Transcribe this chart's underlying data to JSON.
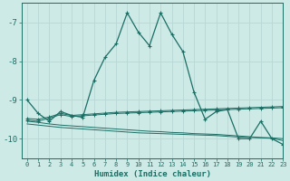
{
  "xlabel": "Humidex (Indice chaleur)",
  "background_color": "#ceeae7",
  "grid_color": "#b8d8d4",
  "line_color": "#1a6e64",
  "xlim": [
    -0.5,
    23
  ],
  "ylim": [
    -10.5,
    -6.5
  ],
  "yticks": [
    -10,
    -9,
    -8,
    -7
  ],
  "xticks": [
    0,
    1,
    2,
    3,
    4,
    5,
    6,
    7,
    8,
    9,
    10,
    11,
    12,
    13,
    14,
    15,
    16,
    17,
    18,
    19,
    20,
    21,
    22,
    23
  ],
  "main_line_x": [
    0,
    1,
    2,
    3,
    4,
    5,
    6,
    7,
    8,
    9,
    10,
    11,
    12,
    13,
    14,
    15,
    16,
    17,
    18,
    19,
    20,
    21,
    22,
    23
  ],
  "main_line_y": [
    -9.0,
    -9.35,
    -9.55,
    -9.3,
    -9.4,
    -9.45,
    -8.5,
    -7.9,
    -7.55,
    -6.75,
    -7.25,
    -7.6,
    -6.75,
    -7.3,
    -7.75,
    -8.8,
    -9.5,
    -9.3,
    -9.25,
    -10.0,
    -10.0,
    -9.55,
    -10.0,
    -10.15
  ],
  "line2_x": [
    0,
    1,
    2,
    3,
    4,
    5,
    6,
    7,
    8,
    9,
    10,
    11,
    12,
    13,
    14,
    15,
    16,
    17,
    18,
    19,
    20,
    21,
    22,
    23
  ],
  "line2_y": [
    -9.55,
    -9.58,
    -9.62,
    -9.65,
    -9.67,
    -9.69,
    -9.71,
    -9.73,
    -9.75,
    -9.77,
    -9.79,
    -9.81,
    -9.82,
    -9.84,
    -9.85,
    -9.87,
    -9.88,
    -9.89,
    -9.91,
    -9.93,
    -9.95,
    -9.97,
    -9.98,
    -10.0
  ],
  "line3_x": [
    0,
    1,
    2,
    3,
    4,
    5,
    6,
    7,
    8,
    9,
    10,
    11,
    12,
    13,
    14,
    15,
    16,
    17,
    18,
    19,
    20,
    21,
    22,
    23
  ],
  "line3_y": [
    -9.62,
    -9.65,
    -9.68,
    -9.71,
    -9.73,
    -9.75,
    -9.77,
    -9.79,
    -9.81,
    -9.83,
    -9.85,
    -9.86,
    -9.87,
    -9.88,
    -9.89,
    -9.9,
    -9.91,
    -9.92,
    -9.94,
    -9.96,
    -9.97,
    -9.98,
    -9.99,
    -10.05
  ],
  "line4_x": [
    0,
    1,
    2,
    3,
    4,
    5,
    6,
    7,
    8,
    9,
    10,
    11,
    12,
    13,
    14,
    15,
    16,
    17,
    18,
    19,
    20,
    21,
    22,
    23
  ],
  "line4_y": [
    -9.52,
    -9.55,
    -9.47,
    -9.38,
    -9.43,
    -9.41,
    -9.39,
    -9.37,
    -9.35,
    -9.34,
    -9.33,
    -9.32,
    -9.31,
    -9.3,
    -9.29,
    -9.28,
    -9.27,
    -9.26,
    -9.25,
    -9.24,
    -9.23,
    -9.22,
    -9.21,
    -9.2
  ],
  "line5_x": [
    0,
    1,
    2,
    3,
    4,
    5,
    6,
    7,
    8,
    9,
    10,
    11,
    12,
    13,
    14,
    15,
    16,
    17,
    18,
    19,
    20,
    21,
    22,
    23
  ],
  "line5_y": [
    -9.48,
    -9.5,
    -9.44,
    -9.35,
    -9.4,
    -9.38,
    -9.36,
    -9.34,
    -9.32,
    -9.31,
    -9.3,
    -9.29,
    -9.28,
    -9.27,
    -9.26,
    -9.25,
    -9.24,
    -9.23,
    -9.22,
    -9.21,
    -9.2,
    -9.19,
    -9.18,
    -9.17
  ]
}
